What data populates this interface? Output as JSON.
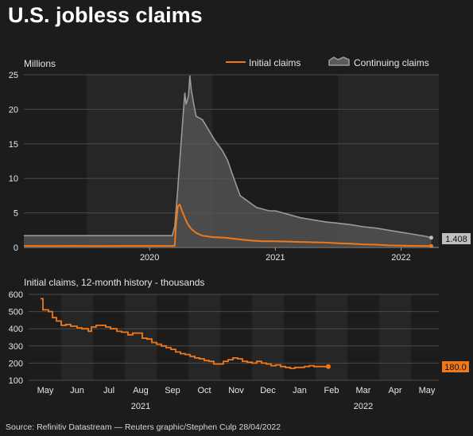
{
  "title": "U.S. jobless claims",
  "source": "Source: Refinitiv Datastream — Reuters graphic/Stephen Culp 28/04/2022",
  "colors": {
    "background": "#1c1c1c",
    "initial": "#f07818",
    "continuing_line": "#9a9a9a",
    "continuing_fill": "#585858",
    "grid": "#4a4a4a",
    "band": "#262626"
  },
  "chart_data": [
    {
      "type": "area",
      "ylabel": "Millions",
      "ylim": [
        0,
        25
      ],
      "yticks": [
        0,
        5,
        10,
        15,
        20,
        25
      ],
      "xlim": [
        2019.0,
        2022.3
      ],
      "xticks": [
        {
          "label": "2020",
          "x": 2020.0
        },
        {
          "label": "2021",
          "x": 2021.0
        },
        {
          "label": "2022",
          "x": 2022.0
        }
      ],
      "legend_position": "top-right",
      "end_label": "1.408",
      "series": [
        {
          "name": "Initial claims",
          "style": "line",
          "color": "#f07818",
          "points": [
            [
              2019.0,
              0.22
            ],
            [
              2019.2,
              0.21
            ],
            [
              2019.4,
              0.22
            ],
            [
              2019.6,
              0.21
            ],
            [
              2019.8,
              0.22
            ],
            [
              2020.18,
              0.22
            ],
            [
              2020.2,
              0.25
            ],
            [
              2020.21,
              3.3
            ],
            [
              2020.225,
              6.0
            ],
            [
              2020.24,
              6.2
            ],
            [
              2020.26,
              5.2
            ],
            [
              2020.28,
              4.3
            ],
            [
              2020.3,
              3.5
            ],
            [
              2020.33,
              2.7
            ],
            [
              2020.37,
              2.1
            ],
            [
              2020.42,
              1.7
            ],
            [
              2020.5,
              1.5
            ],
            [
              2020.6,
              1.4
            ],
            [
              2020.7,
              1.2
            ],
            [
              2020.8,
              1.0
            ],
            [
              2020.9,
              0.9
            ],
            [
              2021.0,
              0.9
            ],
            [
              2021.1,
              0.85
            ],
            [
              2021.2,
              0.8
            ],
            [
              2021.3,
              0.75
            ],
            [
              2021.4,
              0.7
            ],
            [
              2021.5,
              0.6
            ],
            [
              2021.6,
              0.55
            ],
            [
              2021.7,
              0.45
            ],
            [
              2021.8,
              0.4
            ],
            [
              2021.9,
              0.3
            ],
            [
              2022.0,
              0.25
            ],
            [
              2022.1,
              0.23
            ],
            [
              2022.2,
              0.215
            ],
            [
              2022.24,
              0.2
            ]
          ]
        },
        {
          "name": "Continuing claims",
          "style": "area",
          "color": "#9a9a9a",
          "points": [
            [
              2019.0,
              1.7
            ],
            [
              2019.5,
              1.7
            ],
            [
              2020.18,
              1.7
            ],
            [
              2020.2,
              3.0
            ],
            [
              2020.22,
              7.5
            ],
            [
              2020.24,
              12.5
            ],
            [
              2020.26,
              17.5
            ],
            [
              2020.28,
              22.4
            ],
            [
              2020.29,
              20.7
            ],
            [
              2020.31,
              22.0
            ],
            [
              2020.32,
              24.9
            ],
            [
              2020.33,
              23.0
            ],
            [
              2020.35,
              20.9
            ],
            [
              2020.37,
              19.0
            ],
            [
              2020.42,
              18.5
            ],
            [
              2020.47,
              17.0
            ],
            [
              2020.52,
              15.5
            ],
            [
              2020.58,
              14.0
            ],
            [
              2020.62,
              12.6
            ],
            [
              2020.66,
              10.5
            ],
            [
              2020.72,
              7.5
            ],
            [
              2020.78,
              6.7
            ],
            [
              2020.85,
              5.8
            ],
            [
              2020.95,
              5.3
            ],
            [
              2021.0,
              5.3
            ],
            [
              2021.1,
              4.8
            ],
            [
              2021.2,
              4.3
            ],
            [
              2021.3,
              4.0
            ],
            [
              2021.4,
              3.7
            ],
            [
              2021.5,
              3.5
            ],
            [
              2021.6,
              3.3
            ],
            [
              2021.7,
              3.0
            ],
            [
              2021.8,
              2.8
            ],
            [
              2021.9,
              2.5
            ],
            [
              2022.0,
              2.2
            ],
            [
              2022.1,
              1.9
            ],
            [
              2022.2,
              1.6
            ],
            [
              2022.24,
              1.408
            ]
          ]
        }
      ]
    },
    {
      "type": "line",
      "title": "Initial claims, 12-month history - thousands",
      "ylim": [
        100,
        600
      ],
      "yticks": [
        100,
        200,
        300,
        400,
        500,
        600
      ],
      "xticks": [
        "May",
        "Jun",
        "Jul",
        "Aug",
        "Sep",
        "Oct",
        "Nov",
        "Dec",
        "Jan",
        "Feb",
        "Mar",
        "Apr",
        "May"
      ],
      "year_labels": [
        {
          "label": "2021",
          "month": 3
        },
        {
          "label": "2022",
          "month": 10
        }
      ],
      "end_label": "180.0",
      "series": [
        {
          "name": "Initial claims",
          "color": "#f07818",
          "points": [
            [
              -0.3,
              575
            ],
            [
              -0.15,
              510
            ],
            [
              0.2,
              500
            ],
            [
              0.45,
              465
            ],
            [
              0.7,
              445
            ],
            [
              1.0,
              420
            ],
            [
              1.3,
              425
            ],
            [
              1.6,
              415
            ],
            [
              2.0,
              405
            ],
            [
              2.3,
              400
            ],
            [
              2.5,
              400
            ],
            [
              2.7,
              385
            ],
            [
              2.9,
              410
            ],
            [
              3.2,
              420
            ],
            [
              3.5,
              420
            ],
            [
              3.8,
              410
            ],
            [
              4.1,
              400
            ],
            [
              4.5,
              385
            ],
            [
              4.8,
              380
            ],
            [
              5.2,
              365
            ],
            [
              5.5,
              375
            ],
            [
              5.8,
              375
            ],
            [
              6.1,
              345
            ],
            [
              6.4,
              340
            ],
            [
              6.7,
              320
            ],
            [
              7.0,
              310
            ],
            [
              7.3,
              300
            ],
            [
              7.6,
              290
            ],
            [
              7.9,
              280
            ],
            [
              8.2,
              265
            ],
            [
              8.5,
              255
            ],
            [
              8.8,
              250
            ],
            [
              9.1,
              240
            ],
            [
              9.4,
              230
            ],
            [
              9.7,
              225
            ],
            [
              10.0,
              215
            ],
            [
              10.3,
              210
            ],
            [
              10.6,
              195
            ],
            [
              10.9,
              195
            ],
            [
              11.2,
              210
            ],
            [
              11.5,
              220
            ],
            [
              11.8,
              230
            ],
            [
              12.1,
              225
            ],
            [
              12.4,
              210
            ],
            [
              12.7,
              205
            ],
            [
              13.0,
              200
            ],
            [
              13.3,
              210
            ],
            [
              13.6,
              200
            ],
            [
              13.9,
              195
            ],
            [
              14.2,
              185
            ],
            [
              14.5,
              190
            ],
            [
              14.8,
              180
            ],
            [
              15.1,
              175
            ],
            [
              15.4,
              170
            ],
            [
              15.7,
              175
            ],
            [
              16.0,
              175
            ],
            [
              16.3,
              180
            ],
            [
              16.6,
              185
            ],
            [
              16.9,
              180
            ],
            [
              17.2,
              180
            ],
            [
              17.5,
              180
            ],
            [
              17.8,
              180
            ]
          ],
          "steps": true
        }
      ],
      "x_unit": "month_index"
    }
  ]
}
